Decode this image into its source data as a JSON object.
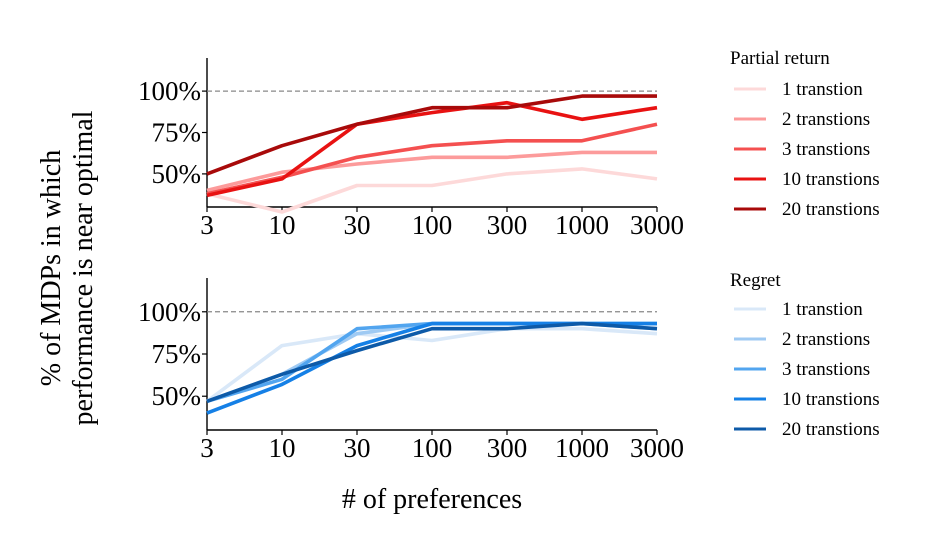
{
  "chart_data": [
    {
      "type": "line",
      "title": "",
      "legend_title": "Partial return",
      "categories": [
        "3",
        "10",
        "30",
        "100",
        "300",
        "1000",
        "3000"
      ],
      "yticks": [
        "50%",
        "75%",
        "100%"
      ],
      "ylim": [
        30,
        120
      ],
      "reference_line": 100,
      "series": [
        {
          "name": "1 transtion",
          "color": "#fdd9d9",
          "values": [
            38,
            27,
            43,
            43,
            50,
            53,
            47
          ]
        },
        {
          "name": "2 transtions",
          "color": "#fc9b9b",
          "values": [
            40,
            51,
            56,
            60,
            60,
            63,
            63
          ]
        },
        {
          "name": "3 transtions",
          "color": "#f45050",
          "values": [
            38,
            48,
            60,
            67,
            70,
            70,
            80
          ]
        },
        {
          "name": "10 transtions",
          "color": "#e81212",
          "values": [
            37,
            47,
            80,
            87,
            93,
            83,
            90
          ]
        },
        {
          "name": "20 transtions",
          "color": "#a80a0a",
          "values": [
            50,
            67,
            80,
            90,
            90,
            97,
            97
          ]
        }
      ]
    },
    {
      "type": "line",
      "title": "",
      "legend_title": "Regret",
      "categories": [
        "3",
        "10",
        "30",
        "100",
        "300",
        "1000",
        "3000"
      ],
      "yticks": [
        "50%",
        "75%",
        "100%"
      ],
      "ylim": [
        30,
        120
      ],
      "reference_line": 100,
      "series": [
        {
          "name": "1 transtion",
          "color": "#d9e8f8",
          "values": [
            47,
            80,
            87,
            83,
            90,
            90,
            87
          ]
        },
        {
          "name": "2 transtions",
          "color": "#9fcaf3",
          "values": [
            47,
            63,
            87,
            93,
            93,
            93,
            90
          ]
        },
        {
          "name": "3 transtions",
          "color": "#52a5ef",
          "values": [
            47,
            60,
            90,
            93,
            93,
            93,
            93
          ]
        },
        {
          "name": "10 transtions",
          "color": "#1580e6",
          "values": [
            40,
            57,
            80,
            93,
            93,
            93,
            93
          ]
        },
        {
          "name": "20 transtions",
          "color": "#0d5aa8",
          "values": [
            47,
            63,
            77,
            90,
            90,
            93,
            90
          ]
        }
      ]
    }
  ],
  "shared": {
    "ylabel_line1": "% of MDPs in which",
    "ylabel_line2": "performance is near optimal",
    "xlabel": "# of preferences"
  }
}
